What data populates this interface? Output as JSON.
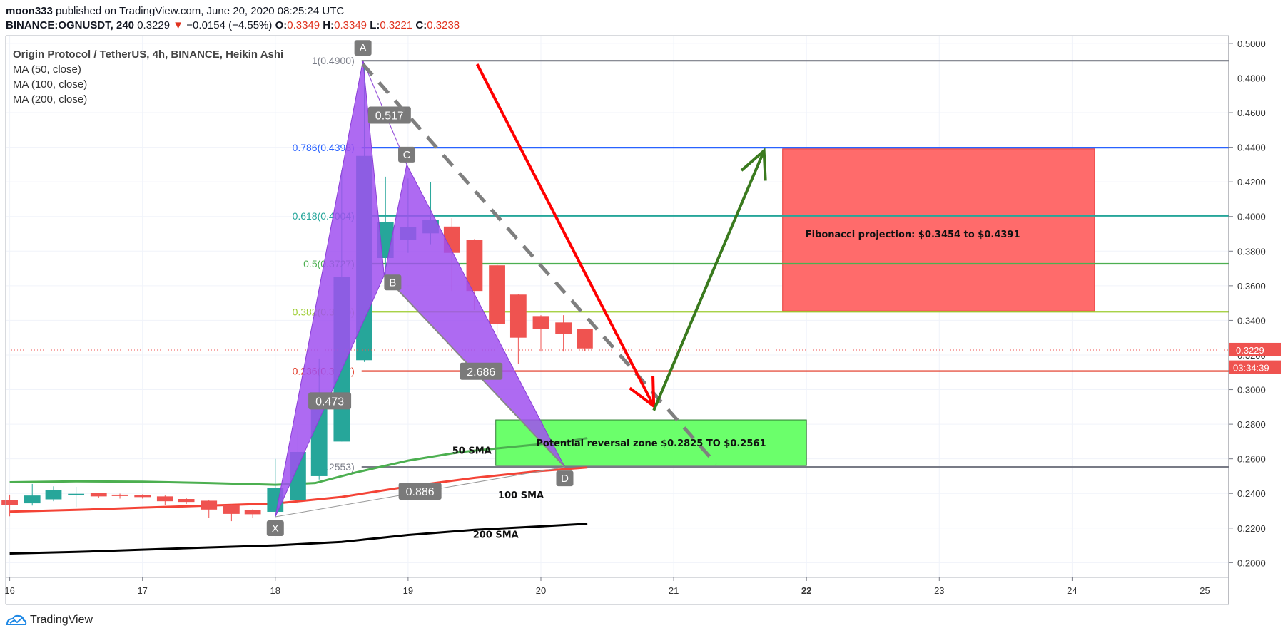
{
  "header": {
    "author": "moon333",
    "published": "published on TradingView.com, June 20, 2020 08:25:24 UTC",
    "symbol": "BINANCE:OGNUSDT, 240",
    "last": "0.3229",
    "arrow": "▼",
    "change": "−0.0154 (−4.55%)",
    "o_label": "O:",
    "o": "0.3349",
    "h_label": "H:",
    "h": "0.3349",
    "l_label": "L:",
    "l": "0.3221",
    "c_label": "C:",
    "c": "0.3238"
  },
  "legend": {
    "title": "Origin Protocol / TetherUS, 4h, BINANCE, Heikin Ashi",
    "ma50": "MA (50, close)",
    "ma100": "MA (100, close)",
    "ma200": "MA (200, close)"
  },
  "footer": {
    "brand": "TradingView"
  },
  "chart_data": {
    "type": "candlestick",
    "x_axis": {
      "min": 15.97,
      "max": 25.18,
      "ticks": [
        "16",
        "17",
        "18",
        "19",
        "20",
        "21",
        "22",
        "23",
        "24",
        "25"
      ],
      "tick_values": [
        16,
        17,
        18,
        19,
        20,
        21,
        22,
        23,
        24,
        25
      ]
    },
    "y_axis": {
      "min": 0.1915,
      "max": 0.5045,
      "ticks": [
        "0.2000",
        "0.2200",
        "0.2400",
        "0.2600",
        "0.2800",
        "0.3000",
        "0.3200",
        "0.3400",
        "0.3600",
        "0.3800",
        "0.4000",
        "0.4200",
        "0.4400",
        "0.4600",
        "0.4800",
        "0.5000"
      ],
      "tick_values": [
        0.2,
        0.22,
        0.24,
        0.26,
        0.28,
        0.3,
        0.32,
        0.34,
        0.36,
        0.38,
        0.4,
        0.42,
        0.44,
        0.46,
        0.48,
        0.5
      ]
    },
    "price_badge": {
      "value": "0.3229",
      "y": 0.3229
    },
    "countdown_badge": {
      "text": "03:34:39",
      "y": 0.3115
    },
    "colors": {
      "up": "#26a69a",
      "down": "#ef5350",
      "ma50": "#4caf50",
      "ma100": "#f44336",
      "ma200": "#000000",
      "pattern": "#a050f0"
    },
    "candles": [
      {
        "t": 16.0,
        "o": 0.2363,
        "c": 0.2335,
        "h": 0.2393,
        "l": 0.2268
      },
      {
        "t": 16.17,
        "o": 0.2343,
        "c": 0.2388,
        "h": 0.2455,
        "l": 0.233
      },
      {
        "t": 16.33,
        "o": 0.2366,
        "c": 0.2418,
        "h": 0.2441,
        "l": 0.2355
      },
      {
        "t": 16.5,
        "o": 0.2392,
        "c": 0.2398,
        "h": 0.2438,
        "l": 0.2322
      },
      {
        "t": 16.67,
        "o": 0.2402,
        "c": 0.2383,
        "h": 0.2404,
        "l": 0.2376
      },
      {
        "t": 16.83,
        "o": 0.2393,
        "c": 0.2385,
        "h": 0.2399,
        "l": 0.237
      },
      {
        "t": 17.0,
        "o": 0.2389,
        "c": 0.2379,
        "h": 0.2395,
        "l": 0.237
      },
      {
        "t": 17.17,
        "o": 0.2383,
        "c": 0.2355,
        "h": 0.2388,
        "l": 0.2335
      },
      {
        "t": 17.33,
        "o": 0.2368,
        "c": 0.2351,
        "h": 0.2374,
        "l": 0.2339
      },
      {
        "t": 17.5,
        "o": 0.2358,
        "c": 0.2307,
        "h": 0.2364,
        "l": 0.226
      },
      {
        "t": 17.67,
        "o": 0.2332,
        "c": 0.2282,
        "h": 0.2337,
        "l": 0.224
      },
      {
        "t": 17.83,
        "o": 0.2306,
        "c": 0.228,
        "h": 0.2309,
        "l": 0.226
      },
      {
        "t": 18.0,
        "o": 0.2294,
        "c": 0.243,
        "h": 0.26,
        "l": 0.228
      },
      {
        "t": 18.17,
        "o": 0.2362,
        "c": 0.264,
        "h": 0.276,
        "l": 0.234
      },
      {
        "t": 18.33,
        "o": 0.25,
        "c": 0.294,
        "h": 0.318,
        "l": 0.248
      },
      {
        "t": 18.5,
        "o": 0.27,
        "c": 0.365,
        "h": 0.427,
        "l": 0.27
      },
      {
        "t": 18.67,
        "o": 0.317,
        "c": 0.435,
        "h": 0.486,
        "l": 0.316
      },
      {
        "t": 18.83,
        "o": 0.376,
        "c": 0.397,
        "h": 0.423,
        "l": 0.36
      },
      {
        "t": 19.0,
        "o": 0.3866,
        "c": 0.394,
        "h": 0.422,
        "l": 0.379
      },
      {
        "t": 19.17,
        "o": 0.3903,
        "c": 0.398,
        "h": 0.42,
        "l": 0.384
      },
      {
        "t": 19.33,
        "o": 0.3942,
        "c": 0.379,
        "h": 0.399,
        "l": 0.357
      },
      {
        "t": 19.5,
        "o": 0.3866,
        "c": 0.357,
        "h": 0.387,
        "l": 0.346
      },
      {
        "t": 19.67,
        "o": 0.3718,
        "c": 0.338,
        "h": 0.373,
        "l": 0.324
      },
      {
        "t": 19.83,
        "o": 0.3549,
        "c": 0.33,
        "h": 0.355,
        "l": 0.315
      },
      {
        "t": 20.0,
        "o": 0.3425,
        "c": 0.335,
        "h": 0.343,
        "l": 0.322
      },
      {
        "t": 20.17,
        "o": 0.3388,
        "c": 0.332,
        "h": 0.343,
        "l": 0.322
      },
      {
        "t": 20.33,
        "o": 0.3349,
        "c": 0.3238,
        "h": 0.3349,
        "l": 0.3221
      }
    ],
    "series": [
      {
        "name": "50 SMA",
        "color": "#4caf50",
        "x": [
          16.0,
          16.5,
          17.0,
          17.5,
          18.0,
          18.3,
          18.6,
          19.0,
          19.4,
          19.8,
          20.2,
          20.35
        ],
        "y": [
          0.2465,
          0.247,
          0.2468,
          0.246,
          0.245,
          0.246,
          0.252,
          0.259,
          0.264,
          0.267,
          0.27,
          0.272
        ]
      },
      {
        "name": "100 SMA",
        "color": "#f44336",
        "x": [
          16.0,
          16.5,
          17.0,
          17.5,
          18.0,
          18.5,
          19.0,
          19.5,
          20.0,
          20.35
        ],
        "y": [
          0.2295,
          0.2305,
          0.2318,
          0.233,
          0.2342,
          0.238,
          0.244,
          0.249,
          0.253,
          0.255
        ]
      },
      {
        "name": "200 SMA",
        "color": "#000000",
        "x": [
          16.0,
          16.5,
          17.0,
          17.5,
          18.0,
          18.5,
          19.0,
          19.5,
          20.0,
          20.35
        ],
        "y": [
          0.2053,
          0.2062,
          0.2075,
          0.2088,
          0.21,
          0.212,
          0.216,
          0.219,
          0.221,
          0.2225
        ]
      }
    ],
    "fib_levels": [
      {
        "label": "1(0.4900)",
        "value": 0.49,
        "color": "#787b86",
        "x0": 18.65,
        "x1": 25.18
      },
      {
        "label": "0.786(0.4398)",
        "value": 0.4398,
        "color": "#2962ff",
        "x0": 18.65,
        "x1": 25.18
      },
      {
        "label": "0.618(0.4004)",
        "value": 0.4004,
        "color": "#26a69a",
        "x0": 18.65,
        "x1": 25.18
      },
      {
        "label": "0.5(0.3727)",
        "value": 0.3727,
        "color": "#4caf50",
        "x0": 18.65,
        "x1": 25.18
      },
      {
        "label": "0.382(0.3450)",
        "value": 0.345,
        "color": "#9ccc2e",
        "x0": 18.65,
        "x1": 25.18
      },
      {
        "label": "0.236(0.3107)",
        "value": 0.3107,
        "color": "#e0321e",
        "x0": 18.65,
        "x1": 25.18
      },
      {
        "label": "0(0.2553)",
        "value": 0.2553,
        "color": "#787b86",
        "x0": 18.65,
        "x1": 25.18
      }
    ],
    "harmonic": {
      "points": [
        {
          "name": "X",
          "x": 18.0,
          "y": 0.2265
        },
        {
          "name": "A",
          "x": 18.66,
          "y": 0.49
        },
        {
          "name": "B",
          "x": 18.82,
          "y": 0.366
        },
        {
          "name": "C",
          "x": 18.99,
          "y": 0.43
        },
        {
          "name": "D",
          "x": 20.18,
          "y": 0.2553
        }
      ],
      "ratios": [
        {
          "text": "0.517",
          "x": 18.86,
          "y": 0.4586
        },
        {
          "text": "0.473",
          "x": 18.41,
          "y": 0.2935
        },
        {
          "text": "2.686",
          "x": 19.55,
          "y": 0.3106
        },
        {
          "text": "0.886",
          "x": 19.09,
          "y": 0.2413
        }
      ]
    },
    "zones": [
      {
        "text": "Fibonacci projection: $0.3454 to $0.4391",
        "x0": 21.82,
        "x1": 24.17,
        "y0": 0.3454,
        "y1": 0.4391,
        "fill": "#ff6b6b",
        "stroke": "#e53935"
      },
      {
        "text": "Potential reversal zone $0.2825 TO $0.2561",
        "x0": 19.66,
        "x1": 22.0,
        "y0": 0.2561,
        "y1": 0.2825,
        "fill": "#6bff6b",
        "stroke": "#2e7d32"
      }
    ],
    "arrows": [
      {
        "color": "#ff0000",
        "x0": 19.52,
        "y0": 0.488,
        "x1": 20.85,
        "y1": 0.2905
      },
      {
        "color": "#3a7a1e",
        "x0": 20.85,
        "y0": 0.288,
        "x1": 21.68,
        "y1": 0.438
      }
    ],
    "projection_dash": {
      "x0": 18.66,
      "y0": 0.488,
      "x1": 21.32,
      "y1": 0.257
    },
    "annotations": [
      {
        "text": "50 SMA",
        "x": 19.48,
        "y": 0.265
      },
      {
        "text": "100 SMA",
        "x": 19.85,
        "y": 0.2393
      },
      {
        "text": "200 SMA",
        "x": 19.66,
        "y": 0.2165
      }
    ]
  }
}
